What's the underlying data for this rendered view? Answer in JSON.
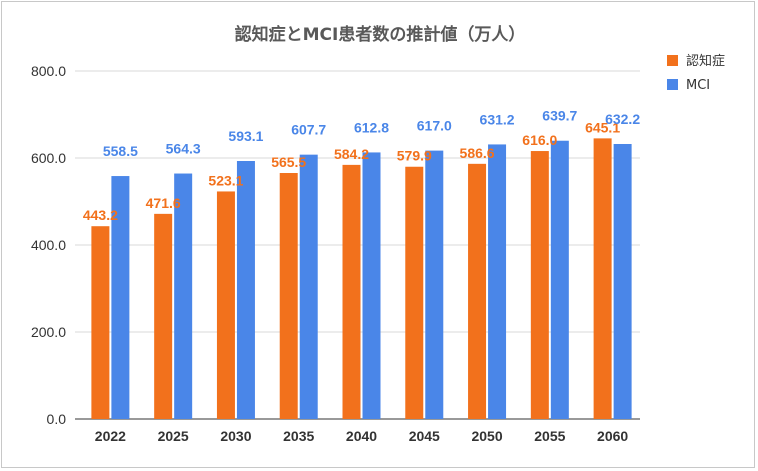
{
  "chart_data": {
    "type": "bar",
    "title": "認知症とMCI患者数の推計値（万人）",
    "categories": [
      "2022",
      "2025",
      "2030",
      "2035",
      "2040",
      "2045",
      "2050",
      "2055",
      "2060"
    ],
    "series": [
      {
        "name": "認知症",
        "color": "#f2711c",
        "values": [
          443.2,
          471.6,
          523.1,
          565.5,
          584.2,
          579.9,
          586.6,
          616.0,
          645.1
        ],
        "labels": [
          "443.2",
          "471.6",
          "523.1",
          "565.5",
          "584.2",
          "579.9",
          "586.6",
          "616.0",
          "645.1"
        ]
      },
      {
        "name": "MCI",
        "color": "#4a86e8",
        "values": [
          558.5,
          564.3,
          593.1,
          607.7,
          612.8,
          617.0,
          631.2,
          639.7,
          632.2
        ],
        "labels": [
          "558.5",
          "564.3",
          "593.1",
          "607.7",
          "612.8",
          "617.0",
          "631.2",
          "639.7",
          "632.2"
        ]
      }
    ],
    "ylim": [
      0,
      800
    ],
    "yticks": [
      "0.0",
      "200.0",
      "400.0",
      "600.0",
      "800.0"
    ],
    "ytick_values": [
      0,
      200,
      400,
      600,
      800
    ],
    "grid": true,
    "legend_position": "right",
    "xlabel": "",
    "ylabel": ""
  }
}
